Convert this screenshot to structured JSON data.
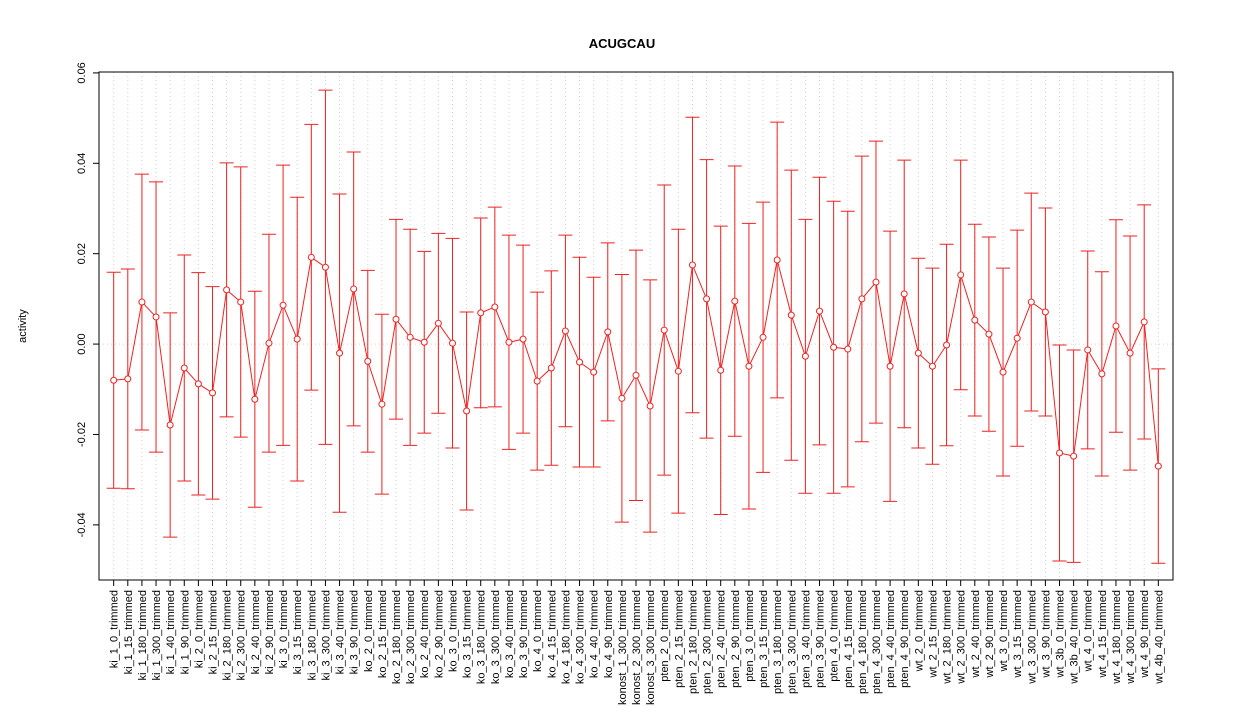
{
  "chart_data": {
    "type": "errorbar_line",
    "title": "ACUGCAU",
    "y_label": "activity",
    "categories": [
      "ki_1_0_trimmed",
      "ki_1_15_trimmed",
      "ki_1_180_trimmed",
      "ki_1_300_trimmed",
      "ki_1_40_trimmed",
      "ki_1_90_trimmed",
      "ki_2_0_trimmed",
      "ki_2_15_trimmed",
      "ki_2_180_trimmed",
      "ki_2_300_trimmed",
      "ki_2_40_trimmed",
      "ki_2_90_trimmed",
      "ki_3_0_trimmed",
      "ki_3_15_trimmed",
      "ki_3_180_trimmed",
      "ki_3_300_trimmed",
      "ki_3_40_trimmed",
      "ki_3_90_trimmed",
      "ko_2_0_trimmed",
      "ko_2_15_trimmed",
      "ko_2_180_trimmed",
      "ko_2_300_trimmed",
      "ko_2_40_trimmed",
      "ko_2_90_trimmed",
      "ko_3_0_trimmed",
      "ko_3_15_trimmed",
      "ko_3_180_trimmed",
      "ko_3_300_trimmed",
      "ko_3_40_trimmed",
      "ko_3_90_trimmed",
      "ko_4_0_trimmed",
      "ko_4_15_trimmed",
      "ko_4_180_trimmed",
      "ko_4_300_trimmed",
      "ko_4_40_trimmed",
      "ko_4_90_trimmed",
      "konost_1_300_trimmed",
      "konost_2_300_trimmed",
      "konost_3_300_trimmed",
      "pten_2_0_trimmed",
      "pten_2_15_trimmed",
      "pten_2_180_trimmed",
      "pten_2_300_trimmed",
      "pten_2_40_trimmed",
      "pten_2_90_trimmed",
      "pten_3_0_trimmed",
      "pten_3_15_trimmed",
      "pten_3_180_trimmed",
      "pten_3_300_trimmed",
      "pten_3_40_trimmed",
      "pten_3_90_trimmed",
      "pten_4_0_trimmed",
      "pten_4_15_trimmed",
      "pten_4_180_trimmed",
      "pten_4_300_trimmed",
      "pten_4_40_trimmed",
      "pten_4_90_trimmed",
      "wt_2_0_trimmed",
      "wt_2_15_trimmed",
      "wt_2_180_trimmed",
      "wt_2_300_trimmed",
      "wt_2_40_trimmed",
      "wt_2_90_trimmed",
      "wt_3_0_trimmed",
      "wt_3_15_trimmed",
      "wt_3_300_trimmed",
      "wt_3_90_trimmed",
      "wt_3b_0_trimmed",
      "wt_3b_40_trimmed",
      "wt_4_0_trimmed",
      "wt_4_15_trimmed",
      "wt_4_180_trimmed",
      "wt_4_300_trimmed",
      "wt_4_90_trimmed",
      "wt_4b_40_trimmed"
    ],
    "values": [
      -0.008,
      -0.0077,
      0.0093,
      0.006,
      -0.0179,
      -0.0053,
      -0.0088,
      -0.0108,
      0.012,
      0.0093,
      -0.0122,
      0.0002,
      0.0086,
      0.0011,
      0.0192,
      0.017,
      -0.002,
      0.0122,
      -0.0038,
      -0.0133,
      0.0055,
      0.0015,
      0.0004,
      0.0046,
      0.0002,
      -0.0148,
      0.0069,
      0.0082,
      0.0004,
      0.0011,
      -0.0082,
      -0.0053,
      0.0029,
      -0.004,
      -0.0062,
      0.0027,
      -0.012,
      -0.0069,
      -0.0137,
      0.0031,
      -0.006,
      0.0175,
      0.01,
      -0.0058,
      0.0095,
      -0.0049,
      0.0015,
      0.0186,
      0.0064,
      -0.0027,
      0.0073,
      -0.0007,
      -0.0011,
      0.01,
      0.0137,
      -0.0049,
      0.0111,
      -0.002,
      -0.0049,
      -0.0002,
      0.0153,
      0.0053,
      0.0022,
      -0.0062,
      0.0013,
      0.0093,
      0.0071,
      -0.0241,
      -0.0248,
      -0.0013,
      -0.0066,
      0.004,
      -0.002,
      0.0049,
      -0.027
    ],
    "errors": [
      0.0239,
      0.0243,
      0.0283,
      0.0299,
      0.0248,
      0.025,
      0.0246,
      0.0235,
      0.0281,
      0.0299,
      0.0239,
      0.0241,
      0.031,
      0.0314,
      0.0294,
      0.0392,
      0.0352,
      0.0303,
      0.0201,
      0.0199,
      0.0221,
      0.0239,
      0.0201,
      0.0199,
      0.0232,
      0.0219,
      0.021,
      0.0221,
      0.0237,
      0.0208,
      0.0197,
      0.0215,
      0.0212,
      0.0232,
      0.021,
      0.0197,
      0.0274,
      0.0277,
      0.0279,
      0.0321,
      0.0314,
      0.0327,
      0.0308,
      0.0319,
      0.0299,
      0.0316,
      0.0299,
      0.0305,
      0.0321,
      0.0303,
      0.0296,
      0.0323,
      0.0305,
      0.0316,
      0.0312,
      0.0299,
      0.0296,
      0.021,
      0.0217,
      0.0223,
      0.0254,
      0.0212,
      0.0215,
      0.023,
      0.0239,
      0.0241,
      0.023,
      0.0239,
      0.0235,
      0.0219,
      0.0226,
      0.0235,
      0.0259,
      0.0259,
      0.0215
    ],
    "color": "#ee2222",
    "ylim": [
      -0.0522,
      0.0602
    ],
    "yticks": [
      {
        "value": -0.04,
        "label": "-0.04"
      },
      {
        "value": -0.02,
        "label": "-0.02"
      },
      {
        "value": 0,
        "label": "0.00"
      },
      {
        "value": 0.02,
        "label": "0.02"
      },
      {
        "value": 0.04,
        "label": "0.04"
      },
      {
        "value": 0.06,
        "label": "0.06"
      }
    ],
    "grid": true,
    "hline": 0
  }
}
